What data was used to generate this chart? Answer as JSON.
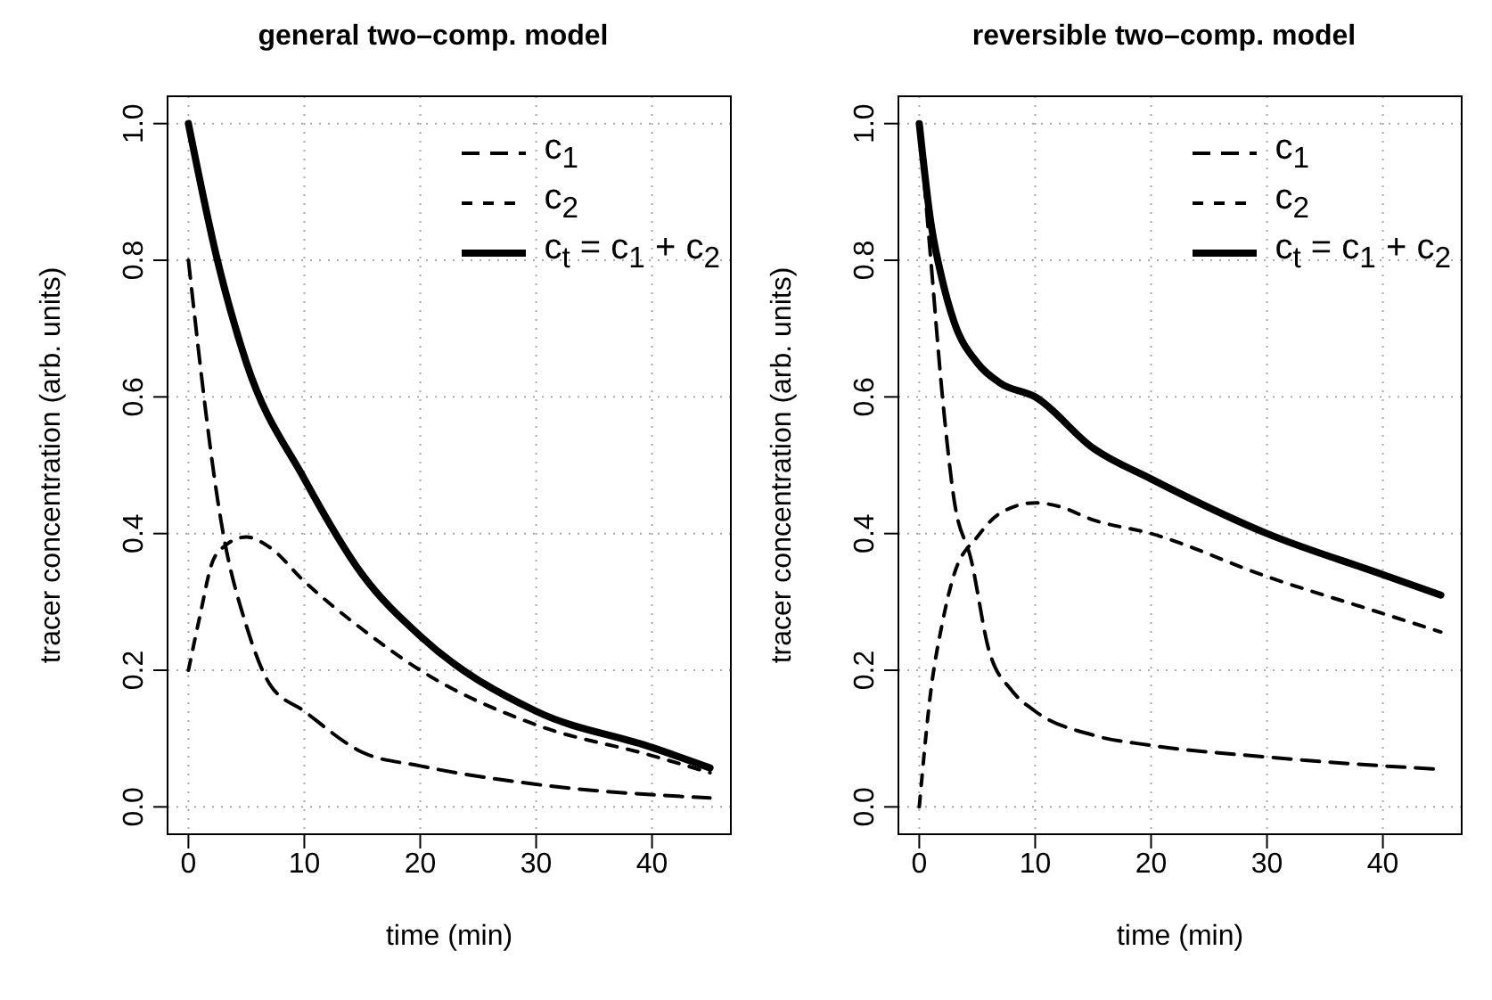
{
  "chart_data": [
    {
      "type": "line",
      "title": "general two–comp. model",
      "xlabel": "time (min)",
      "ylabel": "tracer concentration (arb. units)",
      "xlim": [
        -1.8,
        46.8
      ],
      "ylim": [
        -0.04,
        1.04
      ],
      "xticks": [
        0,
        10,
        20,
        30,
        40
      ],
      "yticks": [
        {
          "value": 0,
          "label": "0.0"
        },
        {
          "value": 0.2,
          "label": "0.2"
        },
        {
          "value": 0.4,
          "label": "0.4"
        },
        {
          "value": 0.6,
          "label": "0.6"
        },
        {
          "value": 0.8,
          "label": "0.8"
        },
        {
          "value": 1,
          "label": "1.0"
        }
      ],
      "grid": true,
      "legend": "top right",
      "marker": "none",
      "series": [
        {
          "name": "c$_{1}$",
          "color": "#000000",
          "line_style": "dashed",
          "x": [
            0,
            3,
            5,
            7,
            10,
            15,
            20,
            30,
            45
          ],
          "values": [
            0.8,
            0.4,
            0.265,
            0.18,
            0.14,
            0.08,
            0.06,
            0.033,
            0.013
          ]
        },
        {
          "name": "c$_{2}$",
          "color": "#000000",
          "line_style": "dashed",
          "x": [
            0,
            1,
            2,
            3,
            5,
            7,
            10,
            15,
            20,
            30,
            40,
            45
          ],
          "values": [
            0.2,
            0.28,
            0.355,
            0.38,
            0.395,
            0.38,
            0.33,
            0.26,
            0.2,
            0.12,
            0.075,
            0.05
          ]
        },
        {
          "name": "c$_{t}$ = c$_{1}$ + c$_{2}$",
          "color": "#000000",
          "line_style": "solid",
          "x": [
            0,
            2.5,
            5,
            10,
            15,
            20,
            30,
            40,
            45
          ],
          "values": [
            1,
            0.8,
            0.65,
            0.48,
            0.34,
            0.25,
            0.14,
            0.087,
            0.057
          ]
        }
      ]
    },
    {
      "type": "line",
      "title": "reversible two–comp. model",
      "xlabel": "time (min)",
      "ylabel": "tracer concentration (arb. units)",
      "xlim": [
        -1.8,
        46.8
      ],
      "ylim": [
        -0.04,
        1.04
      ],
      "xticks": [
        0,
        10,
        20,
        30,
        40
      ],
      "yticks": [
        {
          "value": 0,
          "label": "0.0"
        },
        {
          "value": 0.2,
          "label": "0.2"
        },
        {
          "value": 0.4,
          "label": "0.4"
        },
        {
          "value": 0.6,
          "label": "0.6"
        },
        {
          "value": 0.8,
          "label": "0.8"
        },
        {
          "value": 1,
          "label": "1.0"
        }
      ],
      "grid": true,
      "legend": "top right",
      "marker": "none",
      "series": [
        {
          "name": "c$_{1}$",
          "color": "#000000",
          "line_style": "dashed",
          "x": [
            0,
            1,
            2,
            3,
            4.5,
            6,
            8,
            10,
            15,
            20,
            30,
            40,
            45
          ],
          "values": [
            1,
            0.8,
            0.6,
            0.45,
            0.36,
            0.23,
            0.17,
            0.14,
            0.105,
            0.09,
            0.073,
            0.06,
            0.055
          ]
        },
        {
          "name": "c$_{2}$",
          "color": "#000000",
          "line_style": "dashed",
          "x": [
            0,
            1,
            2,
            3,
            5,
            7,
            10,
            12,
            15,
            20,
            30,
            40,
            45
          ],
          "values": [
            0,
            0.17,
            0.27,
            0.34,
            0.395,
            0.43,
            0.445,
            0.44,
            0.42,
            0.4,
            0.337,
            0.283,
            0.256
          ]
        },
        {
          "name": "c$_{t}$ = c$_{1}$ + c$_{2}$",
          "color": "#000000",
          "line_style": "solid",
          "x": [
            0,
            1,
            2,
            3,
            5,
            7,
            10,
            15,
            20,
            30,
            40,
            45
          ],
          "values": [
            1,
            0.855,
            0.77,
            0.71,
            0.65,
            0.62,
            0.6,
            0.525,
            0.48,
            0.4,
            0.34,
            0.31
          ]
        }
      ]
    }
  ]
}
